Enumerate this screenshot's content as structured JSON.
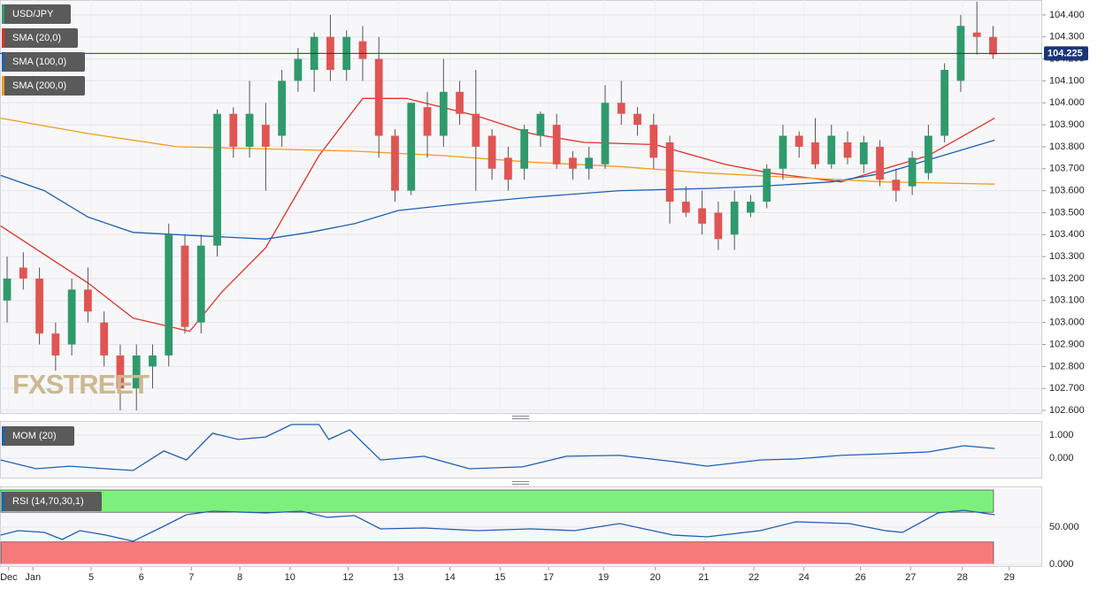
{
  "chart_data": [
    {
      "type": "candlestick",
      "name": "USD/JPY",
      "watermark": "FXSTREET",
      "up_color": "#2f9a6c",
      "down_color": "#e05552",
      "wick_color": "#555555",
      "x": [
        0,
        1,
        2,
        3,
        4,
        5,
        6,
        7,
        8,
        9,
        10,
        11,
        12,
        13,
        14,
        15,
        16,
        17,
        18,
        19,
        20,
        21,
        22,
        23,
        24,
        25,
        26,
        27,
        28,
        29,
        30,
        31,
        32,
        33,
        34,
        35,
        36,
        37,
        38,
        39,
        40,
        41,
        42,
        43,
        44,
        45,
        46,
        47,
        48,
        49,
        50,
        51,
        52,
        53,
        54,
        55,
        56,
        57,
        58,
        59,
        60,
        61
      ],
      "open": [
        103.1,
        103.25,
        103.2,
        102.95,
        102.9,
        103.15,
        103.0,
        102.85,
        102.7,
        102.8,
        102.85,
        103.35,
        103.0,
        103.35,
        103.95,
        103.8,
        103.9,
        103.85,
        104.1,
        104.15,
        104.3,
        104.15,
        104.28,
        104.2,
        103.85,
        103.6,
        103.98,
        103.85,
        104.05,
        103.95,
        103.85,
        103.75,
        103.7,
        103.85,
        103.9,
        103.75,
        103.7,
        103.72,
        104.0,
        103.95,
        103.9,
        103.82,
        103.55,
        103.52,
        103.5,
        103.4,
        103.5,
        103.55,
        103.7,
        103.85,
        103.82,
        103.72,
        103.82,
        103.72,
        103.8,
        103.65,
        103.62,
        103.68,
        103.85,
        104.1,
        104.32,
        104.3
      ],
      "high": [
        103.3,
        103.32,
        103.25,
        103.0,
        103.2,
        103.25,
        103.05,
        102.9,
        102.9,
        102.9,
        103.45,
        103.4,
        103.4,
        103.97,
        103.98,
        104.1,
        104.0,
        104.15,
        104.25,
        104.32,
        104.4,
        104.33,
        104.35,
        104.3,
        103.88,
        104.0,
        104.05,
        104.2,
        104.1,
        104.15,
        103.88,
        103.8,
        103.9,
        103.96,
        103.95,
        103.78,
        103.8,
        104.08,
        104.1,
        103.98,
        103.95,
        103.85,
        103.62,
        103.6,
        103.55,
        103.6,
        103.58,
        103.72,
        103.9,
        103.87,
        103.93,
        103.9,
        103.87,
        103.85,
        103.83,
        103.7,
        103.78,
        103.9,
        104.18,
        104.4,
        104.46,
        104.35
      ],
      "low": [
        103.0,
        103.15,
        102.9,
        102.78,
        102.85,
        103.0,
        102.8,
        102.6,
        102.6,
        102.7,
        102.8,
        102.95,
        102.95,
        103.3,
        103.75,
        103.75,
        103.6,
        103.8,
        104.05,
        104.05,
        104.1,
        104.1,
        104.1,
        103.75,
        103.55,
        103.58,
        103.75,
        103.8,
        103.9,
        103.6,
        103.65,
        103.6,
        103.65,
        103.8,
        103.7,
        103.65,
        103.65,
        103.7,
        103.9,
        103.85,
        103.7,
        103.45,
        103.48,
        103.4,
        103.33,
        103.33,
        103.48,
        103.52,
        103.65,
        103.75,
        103.7,
        103.7,
        103.72,
        103.68,
        103.62,
        103.55,
        103.58,
        103.65,
        103.82,
        104.05,
        104.22,
        104.2
      ],
      "close": [
        103.2,
        103.2,
        102.95,
        102.85,
        103.15,
        103.05,
        102.85,
        102.7,
        102.85,
        102.85,
        103.4,
        102.98,
        103.35,
        103.95,
        103.8,
        103.95,
        103.8,
        104.1,
        104.2,
        104.3,
        104.15,
        104.3,
        104.2,
        103.85,
        103.6,
        104.0,
        103.85,
        104.05,
        103.95,
        103.8,
        103.7,
        103.65,
        103.88,
        103.95,
        103.72,
        103.7,
        103.75,
        104.0,
        103.95,
        103.9,
        103.75,
        103.55,
        103.5,
        103.45,
        103.38,
        103.55,
        103.55,
        103.7,
        103.85,
        103.8,
        103.72,
        103.85,
        103.75,
        103.82,
        103.65,
        103.6,
        103.75,
        103.85,
        104.15,
        104.35,
        104.3,
        104.22
      ],
      "overlays": [
        {
          "name": "SMA (20,0)",
          "color": "#e0302a",
          "x": [
            -0.4,
            5.0,
            7.8,
            11.3,
            13.3,
            16.0,
            19.3,
            22.0,
            24.7,
            29.1,
            32.4,
            35.7,
            40.1,
            44.4,
            47.2,
            51.6,
            54.3,
            57.0,
            61.1
          ],
          "values": [
            103.44,
            103.18,
            103.02,
            102.96,
            103.14,
            103.34,
            103.76,
            104.02,
            104.02,
            103.94,
            103.86,
            103.82,
            103.81,
            103.72,
            103.68,
            103.64,
            103.7,
            103.76,
            103.93
          ]
        },
        {
          "name": "SMA (100,0)",
          "color": "#1f5fb4",
          "x": [
            -0.4,
            2.3,
            5.0,
            7.8,
            10.5,
            16.0,
            18.7,
            21.5,
            24.2,
            28.0,
            32.4,
            37.9,
            43.3,
            46.6,
            51.0,
            54.3,
            57.0,
            61.1
          ],
          "values": [
            103.67,
            103.6,
            103.48,
            103.41,
            103.4,
            103.38,
            103.41,
            103.45,
            103.51,
            103.54,
            103.57,
            103.6,
            103.61,
            103.62,
            103.64,
            103.68,
            103.74,
            103.83
          ]
        },
        {
          "name": "SMA (200,0)",
          "color": "#f29b1d",
          "x": [
            -0.4,
            5.0,
            10.5,
            16.0,
            21.5,
            26.9,
            32.4,
            37.9,
            43.3,
            48.8,
            54.3,
            61.1
          ],
          "values": [
            103.93,
            103.86,
            103.8,
            103.79,
            103.78,
            103.76,
            103.73,
            103.71,
            103.68,
            103.66,
            103.64,
            103.63
          ]
        }
      ],
      "last_price": 104.225,
      "last_price_color": "#1c3578",
      "xlim": [
        -0.44,
        64.04
      ],
      "ylim": [
        102.584,
        104.468
      ],
      "grid": true,
      "xticks": [
        {
          "value": 0.1,
          "label": "Dec"
        },
        {
          "value": 1.6,
          "label": "Jan"
        },
        {
          "value": 5.2,
          "label": "5"
        },
        {
          "value": 8.3,
          "label": "6"
        },
        {
          "value": 11.4,
          "label": "7"
        },
        {
          "value": 14.4,
          "label": "8"
        },
        {
          "value": 17.5,
          "label": "10"
        },
        {
          "value": 21.1,
          "label": "12"
        },
        {
          "value": 24.2,
          "label": "13"
        },
        {
          "value": 27.4,
          "label": "14"
        },
        {
          "value": 30.5,
          "label": "15"
        },
        {
          "value": 33.5,
          "label": "17"
        },
        {
          "value": 36.9,
          "label": "19"
        },
        {
          "value": 40.1,
          "label": "20"
        },
        {
          "value": 43.1,
          "label": "21"
        },
        {
          "value": 46.2,
          "label": "22"
        },
        {
          "value": 49.3,
          "label": "24"
        },
        {
          "value": 52.8,
          "label": "26"
        },
        {
          "value": 55.9,
          "label": "27"
        },
        {
          "value": 59.1,
          "label": "28"
        },
        {
          "value": 62.0,
          "label": "29"
        }
      ],
      "yticks": [
        {
          "value": 102.6,
          "label": "102.600"
        },
        {
          "value": 102.7,
          "label": "102.700"
        },
        {
          "value": 102.8,
          "label": "102.800"
        },
        {
          "value": 102.9,
          "label": "102.900"
        },
        {
          "value": 103.0,
          "label": "103.000"
        },
        {
          "value": 103.1,
          "label": "103.100"
        },
        {
          "value": 103.2,
          "label": "103.200"
        },
        {
          "value": 103.3,
          "label": "103.300"
        },
        {
          "value": 103.4,
          "label": "103.400"
        },
        {
          "value": 103.5,
          "label": "103.500"
        },
        {
          "value": 103.6,
          "label": "103.600"
        },
        {
          "value": 103.7,
          "label": "103.700"
        },
        {
          "value": 103.8,
          "label": "103.800"
        },
        {
          "value": 103.9,
          "label": "103.900"
        },
        {
          "value": 104.0,
          "label": "104.000"
        },
        {
          "value": 104.1,
          "label": "104.100"
        },
        {
          "value": 104.2,
          "label": "104.200"
        },
        {
          "value": 104.3,
          "label": "104.300"
        },
        {
          "value": 104.4,
          "label": "104.400"
        }
      ]
    },
    {
      "type": "line",
      "series": [
        {
          "name": "MOM (20)",
          "color": "#1f5fb4",
          "x": [
            -0.4,
            1.8,
            3.9,
            6.1,
            7.8,
            9.7,
            11.1,
            12.7,
            14.3,
            16.0,
            17.6,
            19.3,
            19.9,
            21.2,
            23.1,
            25.8,
            28.6,
            31.9,
            34.6,
            37.9,
            41.2,
            43.3,
            46.6,
            48.8,
            51.6,
            54.3,
            57.0,
            59.2,
            61.1
          ],
          "values": [
            -0.08,
            -0.46,
            -0.35,
            -0.46,
            -0.54,
            0.31,
            -0.08,
            1.08,
            0.81,
            0.92,
            1.46,
            1.46,
            0.81,
            1.23,
            -0.08,
            0.08,
            -0.46,
            -0.38,
            0.08,
            0.12,
            -0.15,
            -0.35,
            -0.08,
            -0.04,
            0.12,
            0.19,
            0.27,
            0.54,
            0.42
          ]
        }
      ],
      "ylim": [
        -0.885,
        1.577
      ],
      "yticks": [
        {
          "value": 1,
          "label": "1.000"
        },
        {
          "value": 0,
          "label": "0.000"
        }
      ]
    },
    {
      "type": "line",
      "series": [
        {
          "name": "RSI (14,70,30,1)",
          "color": "#1f5fb4",
          "x": [
            -0.4,
            0.7,
            2.3,
            3.4,
            4.5,
            6.1,
            7.8,
            9.7,
            11.1,
            12.7,
            16.0,
            18.2,
            19.8,
            21.5,
            23.1,
            25.8,
            29.1,
            32.4,
            35.1,
            37.9,
            41.2,
            43.3,
            46.6,
            48.8,
            52.1,
            54.3,
            55.4,
            57.6,
            59.2,
            61.1
          ],
          "values": [
            39.3,
            45.2,
            42.9,
            33.3,
            45.2,
            39.3,
            31.0,
            51.2,
            66.7,
            71.4,
            69.0,
            71.4,
            63.1,
            65.5,
            47.6,
            48.8,
            45.2,
            47.6,
            45.2,
            54.8,
            39.3,
            36.9,
            45.2,
            57.1,
            54.8,
            45.2,
            42.9,
            69.0,
            72.6,
            66.7
          ]
        }
      ],
      "bands": [
        {
          "from": 70,
          "to": 100,
          "color": "#7cf07c"
        },
        {
          "from": 0,
          "to": 30,
          "color": "#f77a7a"
        }
      ],
      "ylim": [
        -3.6,
        103.6
      ],
      "yticks": [
        {
          "value": 50,
          "label": "50.000"
        },
        {
          "value": 0,
          "label": "0.000"
        }
      ]
    }
  ]
}
